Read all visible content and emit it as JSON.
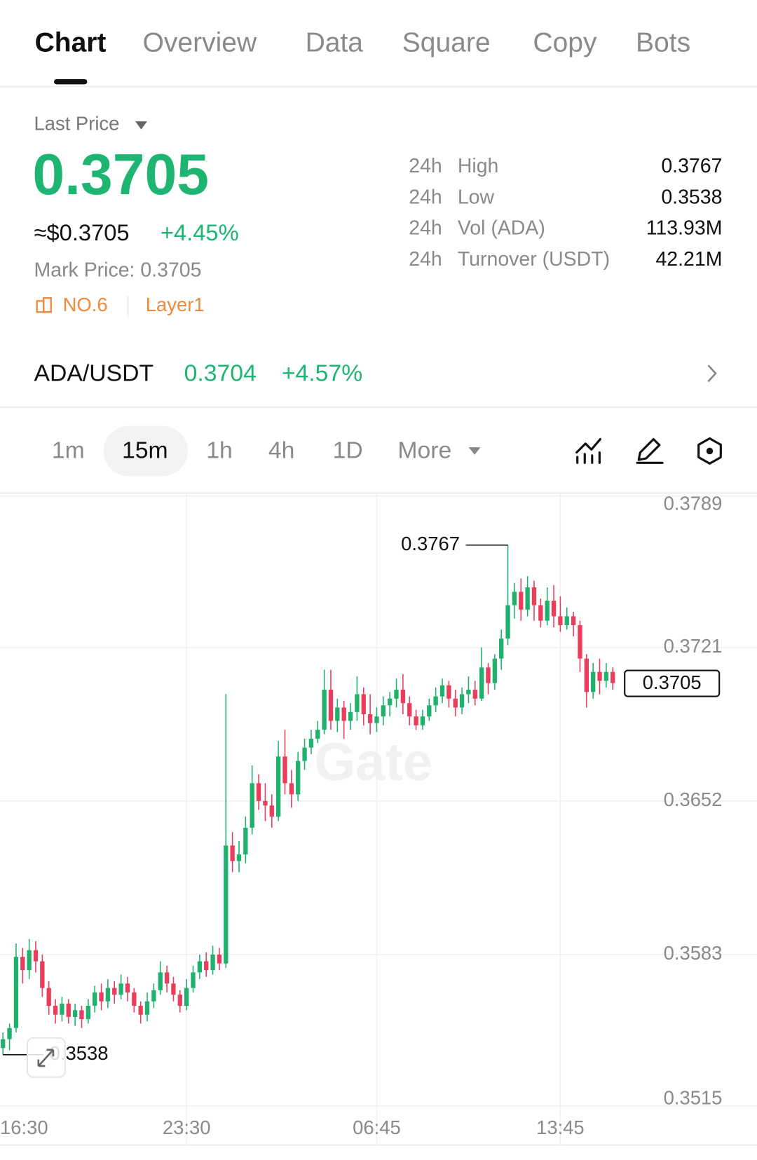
{
  "tabs": [
    "Chart",
    "Overview",
    "Data",
    "Square",
    "Copy",
    "Bots"
  ],
  "price": {
    "label": "Last Price",
    "last": "0.3705",
    "usd": "≈$0.3705",
    "change": "+4.45%",
    "mark": "Mark Price: 0.3705",
    "rank": "NO.6",
    "tag": "Layer1"
  },
  "stats": [
    {
      "period": "24h",
      "label": "High",
      "value": "0.3767"
    },
    {
      "period": "24h",
      "label": "Low",
      "value": "0.3538"
    },
    {
      "period": "24h",
      "label": "Vol (ADA)",
      "value": "113.93M"
    },
    {
      "period": "24h",
      "label": "Turnover (USDT)",
      "value": "42.21M"
    }
  ],
  "pair": {
    "name": "ADA/USDT",
    "price": "0.3704",
    "change": "+4.57%"
  },
  "intervals": [
    "1m",
    "15m",
    "1h",
    "4h",
    "1D",
    "More"
  ],
  "chart_data": {
    "type": "candlestick",
    "watermark": "Gate",
    "categories": [
      "16:30",
      null,
      null,
      null,
      null,
      null,
      null,
      null,
      null,
      null,
      null,
      null,
      null,
      null,
      null,
      null,
      null,
      null,
      null,
      null,
      null,
      null,
      null,
      null,
      null,
      null,
      null,
      null,
      "23:30",
      null,
      null,
      null,
      null,
      null,
      null,
      null,
      null,
      null,
      null,
      null,
      null,
      null,
      null,
      null,
      null,
      null,
      null,
      null,
      null,
      null,
      null,
      null,
      null,
      null,
      null,
      null,
      null,
      "06:45",
      null,
      null,
      null,
      null,
      null,
      null,
      null,
      null,
      null,
      null,
      null,
      null,
      null,
      null,
      null,
      null,
      null,
      null,
      null,
      null,
      null,
      null,
      null,
      null,
      null,
      null,
      null,
      "13:45",
      null,
      null,
      null,
      null,
      null,
      null,
      null,
      null
    ],
    "open": [
      0.3541,
      0.3545,
      0.355,
      0.3582,
      0.3576,
      0.3585,
      0.358,
      0.3568,
      0.356,
      0.3556,
      0.3561,
      0.3555,
      0.3558,
      0.3554,
      0.356,
      0.3566,
      0.3562,
      0.3568,
      0.3565,
      0.357,
      0.3566,
      0.356,
      0.3556,
      0.3562,
      0.3567,
      0.3575,
      0.357,
      0.3565,
      0.356,
      0.3568,
      0.3575,
      0.358,
      0.3576,
      0.3583,
      0.3579,
      0.3632,
      0.3625,
      0.3628,
      0.364,
      0.366,
      0.3652,
      0.365,
      0.3645,
      0.3672,
      0.366,
      0.3655,
      0.367,
      0.3676,
      0.368,
      0.3684,
      0.3702,
      0.3688,
      0.3694,
      0.3688,
      0.3692,
      0.37,
      0.3691,
      0.3687,
      0.369,
      0.3695,
      0.3698,
      0.3702,
      0.3696,
      0.369,
      0.3686,
      0.369,
      0.3695,
      0.3699,
      0.3704,
      0.3698,
      0.3694,
      0.37,
      0.3702,
      0.3698,
      0.3712,
      0.3705,
      0.3716,
      0.3725,
      0.374,
      0.3746,
      0.3738,
      0.3748,
      0.374,
      0.3733,
      0.3742,
      0.3735,
      0.3731,
      0.3735,
      0.3731,
      0.3716,
      0.3701,
      0.371,
      0.3706,
      0.371
    ],
    "high": [
      0.3548,
      0.3552,
      0.3588,
      0.3586,
      0.359,
      0.3589,
      0.3583,
      0.3571,
      0.3563,
      0.3564,
      0.3563,
      0.3561,
      0.356,
      0.3563,
      0.3569,
      0.357,
      0.3572,
      0.3571,
      0.3574,
      0.3573,
      0.3568,
      0.3562,
      0.3566,
      0.357,
      0.358,
      0.3578,
      0.3573,
      0.3567,
      0.3572,
      0.3578,
      0.3583,
      0.3584,
      0.3587,
      0.3586,
      0.37,
      0.3638,
      0.3634,
      0.3645,
      0.3668,
      0.3664,
      0.366,
      0.3655,
      0.3679,
      0.3684,
      0.3666,
      0.3674,
      0.368,
      0.3684,
      0.3688,
      0.3711,
      0.3711,
      0.3698,
      0.3697,
      0.3696,
      0.3708,
      0.3703,
      0.37,
      0.3694,
      0.3699,
      0.3701,
      0.3707,
      0.3709,
      0.3699,
      0.3693,
      0.3693,
      0.3698,
      0.3703,
      0.3707,
      0.3706,
      0.3702,
      0.3703,
      0.3708,
      0.3706,
      0.3721,
      0.3714,
      0.3718,
      0.3729,
      0.3767,
      0.375,
      0.3752,
      0.3753,
      0.3751,
      0.3743,
      0.3748,
      0.3749,
      0.3744,
      0.3739,
      0.3737,
      0.3733,
      0.3718,
      0.3714,
      0.3716,
      0.3714,
      0.3712
    ],
    "low": [
      0.3538,
      0.354,
      0.3548,
      0.357,
      0.3572,
      0.3575,
      0.3564,
      0.3556,
      0.3552,
      0.3553,
      0.3552,
      0.3551,
      0.355,
      0.3552,
      0.3557,
      0.3558,
      0.3559,
      0.3561,
      0.3563,
      0.3562,
      0.3557,
      0.3552,
      0.3553,
      0.3559,
      0.3565,
      0.3566,
      0.3562,
      0.3557,
      0.3558,
      0.3566,
      0.3572,
      0.3573,
      0.3574,
      0.3576,
      0.3577,
      0.362,
      0.362,
      0.3624,
      0.3637,
      0.3648,
      0.3643,
      0.364,
      0.3643,
      0.3655,
      0.3649,
      0.3652,
      0.3666,
      0.3673,
      0.3678,
      0.3682,
      0.3684,
      0.3683,
      0.368,
      0.3684,
      0.3688,
      0.3686,
      0.3682,
      0.3683,
      0.3686,
      0.369,
      0.3694,
      0.3691,
      0.3686,
      0.3684,
      0.3684,
      0.3688,
      0.3692,
      0.3696,
      0.3694,
      0.369,
      0.3691,
      0.3696,
      0.3695,
      0.3697,
      0.37,
      0.3702,
      0.3711,
      0.3722,
      0.3734,
      0.3733,
      0.3735,
      0.3733,
      0.373,
      0.3731,
      0.373,
      0.3728,
      0.3729,
      0.3726,
      0.371,
      0.3694,
      0.3698,
      0.37,
      0.3703,
      0.3702
    ],
    "close": [
      0.3545,
      0.355,
      0.3582,
      0.3576,
      0.3585,
      0.358,
      0.3568,
      0.356,
      0.3556,
      0.3561,
      0.3555,
      0.3558,
      0.3554,
      0.356,
      0.3566,
      0.3562,
      0.3568,
      0.3565,
      0.357,
      0.3566,
      0.356,
      0.3556,
      0.3562,
      0.3567,
      0.3575,
      0.357,
      0.3565,
      0.356,
      0.3568,
      0.3575,
      0.358,
      0.3576,
      0.3583,
      0.3579,
      0.3632,
      0.3625,
      0.3628,
      0.364,
      0.366,
      0.3652,
      0.365,
      0.3645,
      0.3672,
      0.366,
      0.3655,
      0.367,
      0.3676,
      0.368,
      0.3684,
      0.3702,
      0.3688,
      0.3694,
      0.3688,
      0.3692,
      0.37,
      0.3691,
      0.3687,
      0.369,
      0.3695,
      0.3698,
      0.3702,
      0.3696,
      0.369,
      0.3686,
      0.369,
      0.3695,
      0.3699,
      0.3704,
      0.3698,
      0.3694,
      0.37,
      0.3702,
      0.3698,
      0.3712,
      0.3705,
      0.3716,
      0.3725,
      0.374,
      0.3746,
      0.3738,
      0.3748,
      0.374,
      0.3733,
      0.3742,
      0.3735,
      0.3731,
      0.3735,
      0.3731,
      0.3716,
      0.3701,
      0.371,
      0.3706,
      0.371,
      0.3705
    ],
    "up_color": "#20b26c",
    "down_color": "#ea3d5c",
    "ylim": [
      0.3512,
      0.379
    ],
    "yticks": [
      0.3789,
      0.3721,
      0.3652,
      0.3583,
      0.3515
    ],
    "grid": true,
    "last_price": 0.3705,
    "annotations": [
      {
        "value": 0.3767
      },
      {
        "value": 0.3538
      }
    ]
  }
}
